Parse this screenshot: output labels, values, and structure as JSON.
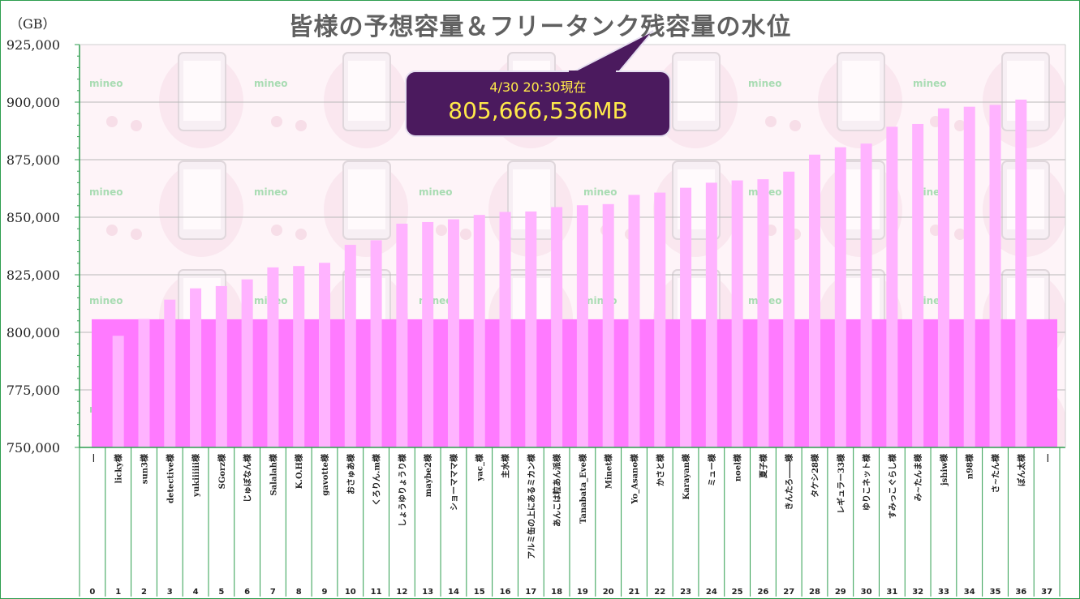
{
  "title": "皆様の予想容量＆フリータンク残容量の水位",
  "unit_label": "（GB）",
  "callout": {
    "line1": "4/30 20:30現在",
    "line2": "805,666,536MB"
  },
  "colors": {
    "water": "#ff7aff",
    "bar": "#ffb3ff",
    "frame": "#2e9e4f",
    "callout_bg": "#4b1a5e",
    "callout_text": "#ffe94a",
    "background_tile": "#fbe3ef"
  },
  "background": {
    "logo_text": "mineo"
  },
  "chart_data": {
    "type": "bar",
    "ylim": [
      750000,
      925000
    ],
    "yticks": [
      750000,
      775000,
      800000,
      825000,
      850000,
      875000,
      900000,
      925000
    ],
    "ytick_labels": [
      "750,000",
      "775,000",
      "800,000",
      "825,000",
      "850,000",
      "875,000",
      "900,000",
      "925,000"
    ],
    "water_level": 805667,
    "categories": [
      "―",
      "licky様",
      "sun3様",
      "detective様",
      "yukiiiiii様",
      "SGorz様",
      "じゅぼなん様",
      "Salalah様",
      "K.O.H様",
      "gavotte様",
      "おさゅあ様",
      "くろりん.m様",
      "しょうゆりょうり様",
      "maybe2様",
      "ショーマママ様",
      "yac_様",
      "主水様",
      "アルミ缶の上にあるミカン様",
      "あんこは粒あん派様",
      "Tanabata_Eve様",
      "Minet様",
      "Yo_Asano様",
      "かさと様",
      "Karayan様",
      "ミュー様",
      "noel様",
      "夏子様",
      "きんたろ――様",
      "タケシ28様",
      "レギュラー33様",
      "ゆりこネット様",
      "すみっこぐらし様",
      "み~たんま様",
      "jshiw様",
      "n98様",
      "さ~たん様",
      "ぽん太様",
      "―"
    ],
    "indices": [
      "0",
      "1",
      "2",
      "3",
      "4",
      "5",
      "6",
      "7",
      "8",
      "9",
      "10",
      "11",
      "12",
      "13",
      "14",
      "15",
      "16",
      "17",
      "18",
      "19",
      "20",
      "21",
      "22",
      "23",
      "24",
      "25",
      "26",
      "27",
      "28",
      "29",
      "30",
      "31",
      "32",
      "33",
      "34",
      "35",
      "36",
      "37"
    ],
    "values": [
      null,
      798500,
      805800,
      814200,
      819100,
      820100,
      823000,
      828200,
      828800,
      830200,
      838000,
      840000,
      847200,
      847900,
      849100,
      851000,
      852300,
      852500,
      854400,
      855200,
      855700,
      859700,
      860700,
      862800,
      865000,
      866000,
      866500,
      869800,
      877200,
      880400,
      882000,
      889300,
      890500,
      897300,
      898000,
      898800,
      901100,
      null
    ]
  }
}
